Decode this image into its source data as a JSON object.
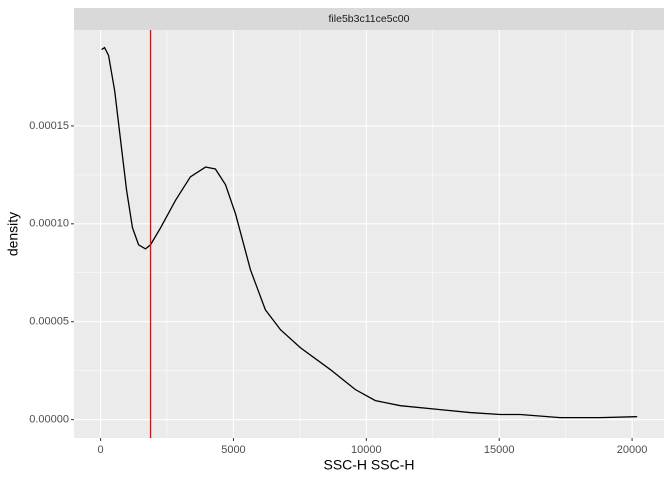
{
  "chart_data": {
    "type": "line",
    "strip_label": "file5b3c11ce5c00",
    "x_label": "SSC-H SSC-H",
    "y_label": "density",
    "series": [
      {
        "color": "#000000",
        "x": [
          40,
          150,
          300,
          530,
          750,
          980,
          1200,
          1430,
          1690,
          1880,
          2260,
          2820,
          3380,
          3950,
          4320,
          4700,
          5080,
          5640,
          6200,
          6770,
          7520,
          8650,
          9590,
          10340,
          11280,
          12780,
          13910,
          15040,
          15790,
          17290,
          18800,
          20190
        ],
        "values": [
          0.000189,
          0.00019,
          0.000186,
          0.000168,
          0.000143,
          0.000117,
          9.8e-05,
          8.93e-05,
          8.72e-05,
          8.93e-05,
          9.8e-05,
          0.000112,
          0.000124,
          0.000129,
          0.000128,
          0.00012,
          0.000105,
          7.65e-05,
          5.61e-05,
          4.59e-05,
          3.67e-05,
          2.55e-05,
          1.53e-05,
          9.7e-06,
          7.1e-06,
          5.1e-06,
          3.6e-06,
          2.6e-06,
          2.6e-06,
          1e-06,
          1e-06,
          1.5e-06
        ]
      }
    ],
    "vline": {
      "value": 1880,
      "color": "#ff0000"
    },
    "xlim": [
      -1000,
      21200
    ],
    "xticks": [
      0,
      5000,
      10000,
      15000,
      20000
    ],
    "ylim": [
      -9.4e-06,
      0.000199
    ],
    "yticks": [
      {
        "value": 0,
        "label": "0.00000"
      },
      {
        "value": 5e-05,
        "label": "0.00005"
      },
      {
        "value": 0.0001,
        "label": "0.00010"
      },
      {
        "value": 0.00015,
        "label": "0.00015"
      }
    ],
    "grid": true
  }
}
